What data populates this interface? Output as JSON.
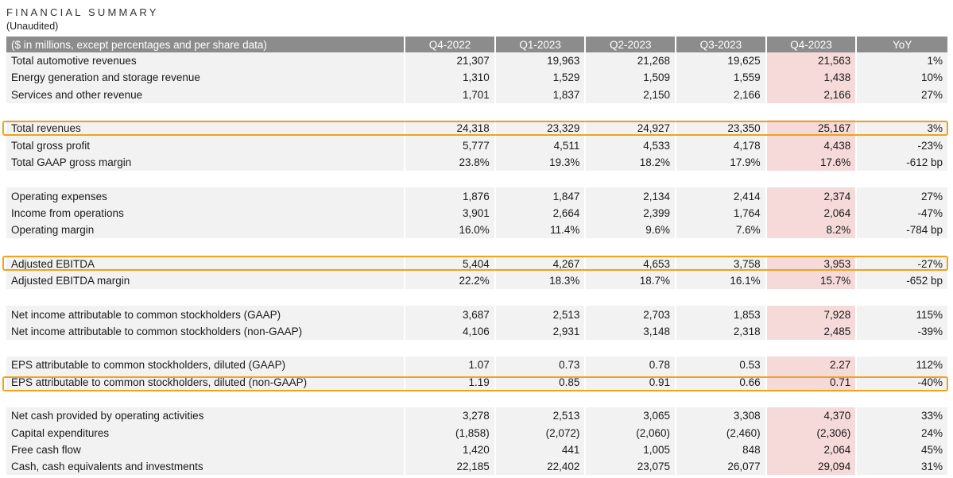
{
  "title": "FINANCIAL SUMMARY",
  "subtitle": "(Unaudited)",
  "headers": [
    "($ in millions, except percentages and per share data)",
    "Q4-2022",
    "Q1-2023",
    "Q2-2023",
    "Q3-2023",
    "Q4-2023",
    "YoY"
  ],
  "rows": [
    {
      "label": "Total automotive revenues",
      "values": [
        "21,307",
        "19,963",
        "21,268",
        "19,625",
        "21,563",
        "1%"
      ]
    },
    {
      "label": "Energy generation and storage revenue",
      "values": [
        "1,310",
        "1,529",
        "1,509",
        "1,559",
        "1,438",
        "10%"
      ]
    },
    {
      "label": "Services and other revenue",
      "values": [
        "1,701",
        "1,837",
        "2,150",
        "2,166",
        "2,166",
        "27%"
      ]
    },
    {
      "label": "Total revenues",
      "values": [
        "24,318",
        "23,329",
        "24,927",
        "23,350",
        "25,167",
        "3%"
      ]
    },
    {
      "label": "Total gross profit",
      "values": [
        "5,777",
        "4,511",
        "4,533",
        "4,178",
        "4,438",
        "-23%"
      ]
    },
    {
      "label": "Total GAAP gross margin",
      "values": [
        "23.8%",
        "19.3%",
        "18.2%",
        "17.9%",
        "17.6%",
        "-612 bp"
      ]
    },
    {
      "label": "Operating expenses",
      "values": [
        "1,876",
        "1,847",
        "2,134",
        "2,414",
        "2,374",
        "27%"
      ]
    },
    {
      "label": "Income from operations",
      "values": [
        "3,901",
        "2,664",
        "2,399",
        "1,764",
        "2,064",
        "-47%"
      ]
    },
    {
      "label": "Operating margin",
      "values": [
        "16.0%",
        "11.4%",
        "9.6%",
        "7.6%",
        "8.2%",
        "-784 bp"
      ]
    },
    {
      "label": "Adjusted EBITDA",
      "values": [
        "5,404",
        "4,267",
        "4,653",
        "3,758",
        "3,953",
        "-27%"
      ]
    },
    {
      "label": "Adjusted EBITDA margin",
      "values": [
        "22.2%",
        "18.3%",
        "18.7%",
        "16.1%",
        "15.7%",
        "-652 bp"
      ]
    },
    {
      "label": "Net income attributable to common stockholders (GAAP)",
      "values": [
        "3,687",
        "2,513",
        "2,703",
        "1,853",
        "7,928",
        "115%"
      ]
    },
    {
      "label": "Net income attributable to common stockholders (non-GAAP)",
      "values": [
        "4,106",
        "2,931",
        "3,148",
        "2,318",
        "2,485",
        "-39%"
      ]
    },
    {
      "label": "EPS attributable to common stockholders, diluted (GAAP)",
      "values": [
        "1.07",
        "0.73",
        "0.78",
        "0.53",
        "2.27",
        "112%"
      ]
    },
    {
      "label": "EPS attributable to common stockholders, diluted (non-GAAP)",
      "values": [
        "1.19",
        "0.85",
        "0.91",
        "0.66",
        "0.71",
        "-40%"
      ]
    },
    {
      "label": "Net cash provided by operating activities",
      "values": [
        "3,278",
        "2,513",
        "3,065",
        "3,308",
        "4,370",
        "33%"
      ]
    },
    {
      "label": "Capital expenditures",
      "values": [
        "(1,858)",
        "(2,072)",
        "(2,060)",
        "(2,460)",
        "(2,306)",
        "24%"
      ]
    },
    {
      "label": "Free cash flow",
      "values": [
        "1,420",
        "441",
        "1,005",
        "848",
        "2,064",
        "45%"
      ]
    },
    {
      "label": "Cash, cash equivalents and investments",
      "values": [
        "22,185",
        "22,402",
        "23,075",
        "26,077",
        "29,094",
        "31%"
      ]
    }
  ]
}
